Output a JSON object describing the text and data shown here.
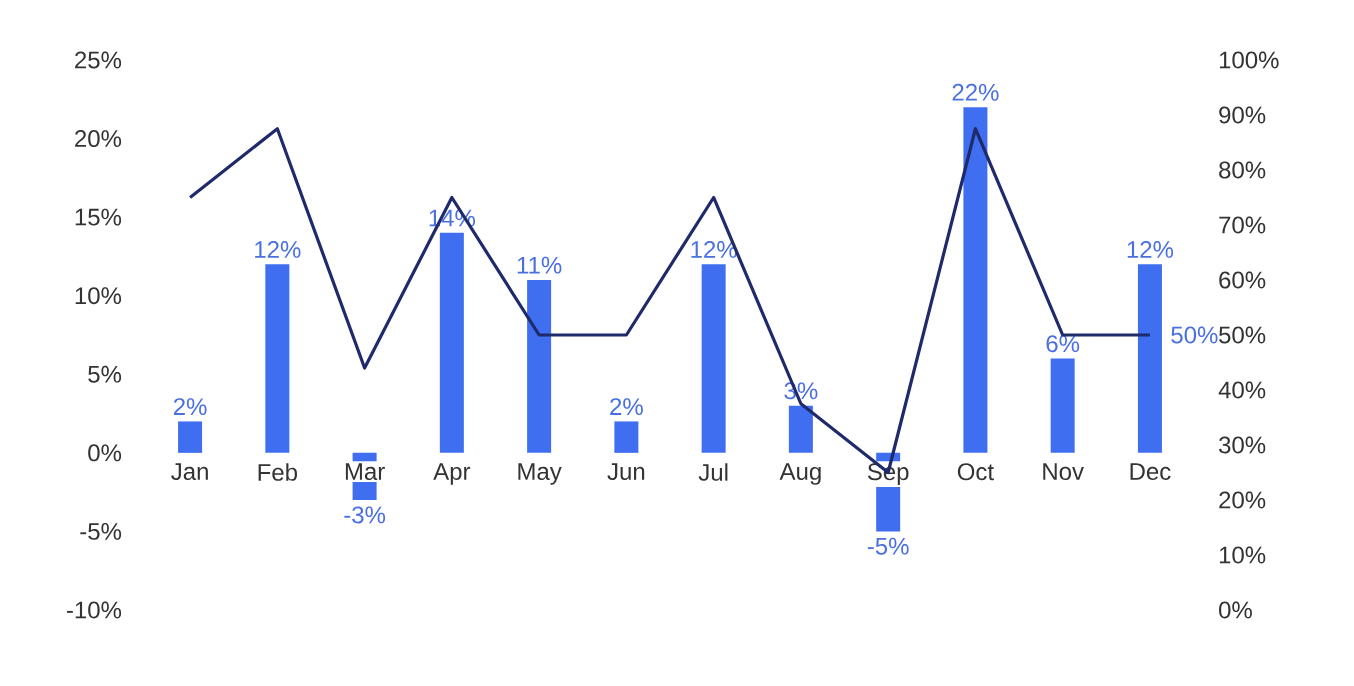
{
  "chart_data": {
    "type": "bar",
    "categories": [
      "Jan",
      "Feb",
      "Mar",
      "Apr",
      "May",
      "Jun",
      "Jul",
      "Aug",
      "Sep",
      "Oct",
      "Nov",
      "Dec"
    ],
    "series": [
      {
        "color": "#3f6ef0",
        "values": [
          2,
          12,
          -3,
          14,
          11,
          2,
          12,
          3,
          -5,
          22,
          6,
          12
        ],
        "value_labels": [
          "2%",
          "12%",
          "-3%",
          "14%",
          "11%",
          "2%",
          "12%",
          "3%",
          "-5%",
          "22%",
          "6%",
          "12%"
        ]
      },
      {
        "type": "line",
        "axis": "y2",
        "color": "#1f2a6b",
        "values": [
          75,
          87.5,
          44,
          75,
          50,
          50,
          75,
          37.5,
          25,
          87.5,
          50,
          50
        ],
        "value_labels": [
          null,
          null,
          null,
          null,
          null,
          null,
          null,
          null,
          null,
          null,
          null,
          "50%"
        ]
      }
    ],
    "ylim": [
      -10,
      25
    ],
    "yticks": [
      {
        "value": -10,
        "label": "-10%"
      },
      {
        "value": -5,
        "label": "-5%"
      },
      {
        "value": 0,
        "label": "0%"
      },
      {
        "value": 5,
        "label": "5%"
      },
      {
        "value": 10,
        "label": "10%"
      },
      {
        "value": 15,
        "label": "15%"
      },
      {
        "value": 20,
        "label": "20%"
      },
      {
        "value": 25,
        "label": "25%"
      }
    ],
    "y2lim": [
      0,
      100
    ],
    "y2ticks": [
      {
        "value": 0,
        "label": "0%"
      },
      {
        "value": 10,
        "label": "10%"
      },
      {
        "value": 20,
        "label": "20%"
      },
      {
        "value": 30,
        "label": "30%"
      },
      {
        "value": 40,
        "label": "40%"
      },
      {
        "value": 50,
        "label": "50%"
      },
      {
        "value": 60,
        "label": "60%"
      },
      {
        "value": 70,
        "label": "70%"
      },
      {
        "value": 80,
        "label": "80%"
      },
      {
        "value": 90,
        "label": "90%"
      },
      {
        "value": 100,
        "label": "100%"
      }
    ]
  }
}
